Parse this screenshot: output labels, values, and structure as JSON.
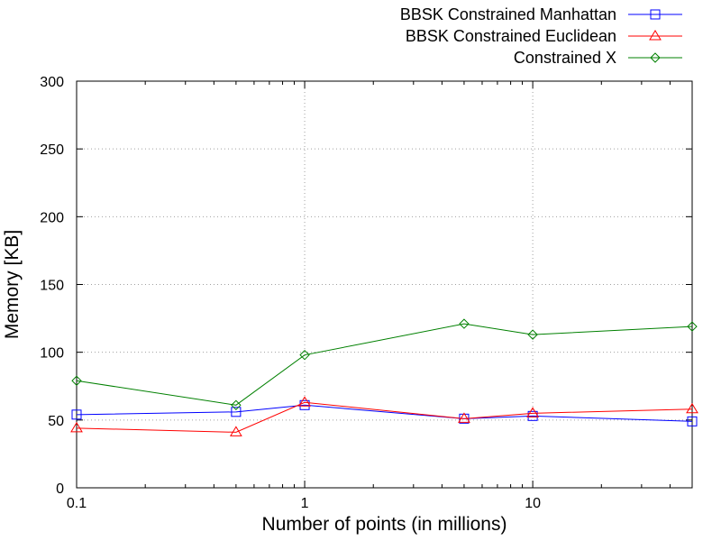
{
  "chart_data": {
    "type": "line",
    "title": "",
    "xlabel": "Number of points (in millions)",
    "ylabel": "Memory [KB]",
    "x_scale": "log",
    "xlim": [
      0.1,
      50
    ],
    "ylim": [
      0,
      300
    ],
    "x_ticks": [
      0.1,
      1,
      10
    ],
    "x_tick_labels": [
      "0.1",
      "1",
      "10"
    ],
    "y_ticks": [
      0,
      50,
      100,
      150,
      200,
      250,
      300
    ],
    "y_tick_labels": [
      "0",
      "50",
      "100",
      "150",
      "200",
      "250",
      "300"
    ],
    "grid": true,
    "legend_position": "top-right",
    "x": [
      0.1,
      0.5,
      1,
      5,
      10,
      50
    ],
    "series": [
      {
        "name": "BBSK Constrained Manhattan",
        "color": "#0000ff",
        "marker": "square",
        "values": [
          54,
          56,
          61,
          51,
          53,
          49
        ]
      },
      {
        "name": "BBSK Constrained Euclidean",
        "color": "#ff0000",
        "marker": "triangle",
        "values": [
          44,
          41,
          63,
          51,
          55,
          58
        ]
      },
      {
        "name": "Constrained X",
        "color": "#008000",
        "marker": "diamond",
        "values": [
          79,
          61,
          98,
          121,
          113,
          119
        ]
      }
    ]
  }
}
